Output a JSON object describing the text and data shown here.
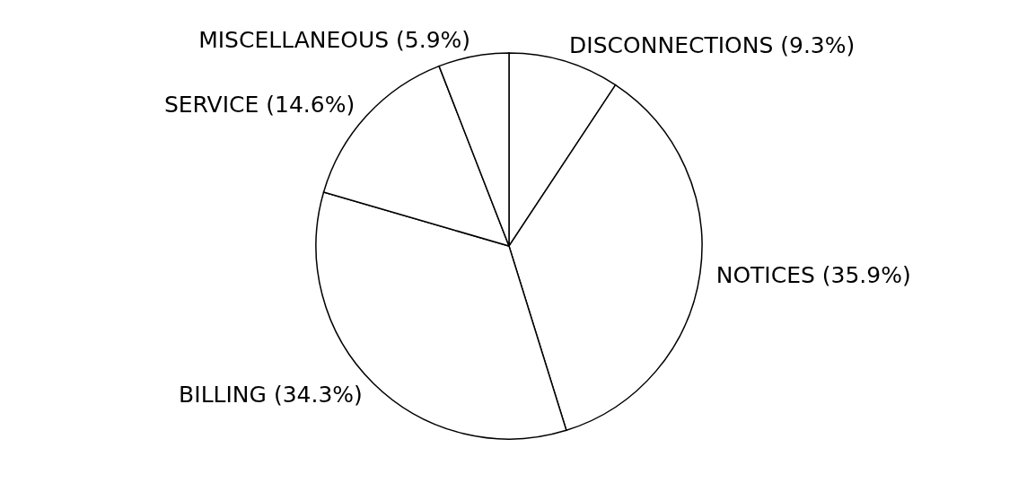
{
  "chart_data": {
    "type": "pie",
    "categories": [
      "DISCONNECTIONS",
      "NOTICES",
      "BILLING",
      "SERVICE",
      "MISCELLANEOUS"
    ],
    "values": [
      9.3,
      35.9,
      34.3,
      14.6,
      5.9
    ],
    "value_labels": [
      "(9.3%)",
      "(35.9%)",
      "(34.3%)",
      "(14.6%)",
      "(5.9%)"
    ],
    "colors": [
      "#ffffff",
      "#ffffff",
      "#ffffff",
      "#ffffff",
      "#ffffff"
    ]
  }
}
